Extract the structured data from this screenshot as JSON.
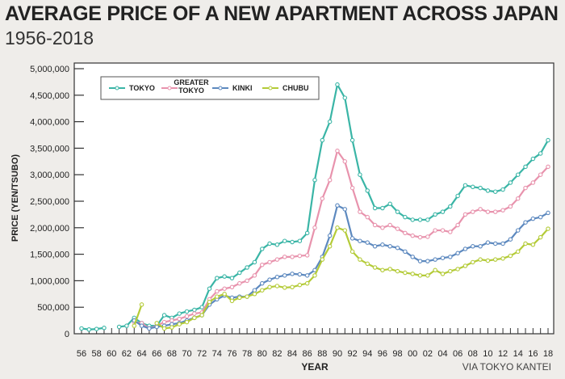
{
  "chart_data": {
    "type": "line",
    "title": "AVERAGE PRICE OF A NEW APARTMENT ACROSS JAPAN",
    "subtitle": "1956-2018",
    "xlabel": "YEAR",
    "ylabel": "PRICE (YEN/TSUBO)",
    "source": "VIA TOKYO KANTEI",
    "ylim": [
      0,
      5000000
    ],
    "xlim": [
      1956,
      2018
    ],
    "yticks": [
      0,
      500000,
      1000000,
      1500000,
      2000000,
      2500000,
      3000000,
      3500000,
      4000000,
      4500000,
      5000000
    ],
    "ytick_labels": [
      "0",
      "500,000",
      "1,000,000",
      "1,500,000",
      "2,000,000",
      "2,500,000",
      "3,000,000",
      "3,500,000",
      "4,000,000",
      "4,500,000",
      "5,000,000"
    ],
    "xtick_labels": [
      "56",
      "58",
      "60",
      "62",
      "64",
      "66",
      "68",
      "70",
      "72",
      "74",
      "76",
      "78",
      "80",
      "82",
      "84",
      "86",
      "88",
      "90",
      "92",
      "94",
      "96",
      "98",
      "00",
      "02",
      "04",
      "06",
      "08",
      "10",
      "12",
      "14",
      "16",
      "18"
    ],
    "legend_placement": "top-left",
    "start_year": 1956,
    "series": [
      {
        "name": "TOKYO",
        "color": "#3ab5a6",
        "values": [
          100000,
          80000,
          90000,
          110000,
          null,
          130000,
          150000,
          300000,
          200000,
          150000,
          150000,
          350000,
          300000,
          380000,
          420000,
          450000,
          500000,
          850000,
          1050000,
          1080000,
          1050000,
          1150000,
          1250000,
          1350000,
          1600000,
          1700000,
          1680000,
          1750000,
          1730000,
          1750000,
          1900000,
          2900000,
          3650000,
          4000000,
          4700000,
          4450000,
          3650000,
          3000000,
          2700000,
          2370000,
          2370000,
          2450000,
          2300000,
          2200000,
          2150000,
          2150000,
          2150000,
          2250000,
          2300000,
          2400000,
          2600000,
          2800000,
          2770000,
          2750000,
          2700000,
          2680000,
          2720000,
          2850000,
          3000000,
          3150000,
          3300000,
          3400000,
          3650000
        ]
      },
      {
        "name": "GREATER TOKYO",
        "color": "#e893ad",
        "values": [
          null,
          null,
          null,
          null,
          null,
          null,
          null,
          220000,
          200000,
          100000,
          150000,
          220000,
          250000,
          280000,
          330000,
          380000,
          400000,
          650000,
          800000,
          850000,
          880000,
          950000,
          1000000,
          1100000,
          1300000,
          1350000,
          1400000,
          1450000,
          1450000,
          1470000,
          1480000,
          2000000,
          2550000,
          2900000,
          3450000,
          3250000,
          2750000,
          2300000,
          2200000,
          2050000,
          2000000,
          2050000,
          1980000,
          1900000,
          1850000,
          1820000,
          1830000,
          1950000,
          1950000,
          1920000,
          2050000,
          2250000,
          2300000,
          2350000,
          2300000,
          2300000,
          2330000,
          2400000,
          2550000,
          2750000,
          2850000,
          3000000,
          3150000
        ]
      },
      {
        "name": "KINKI",
        "color": "#5d89bf",
        "values": [
          null,
          null,
          null,
          null,
          null,
          null,
          null,
          250000,
          150000,
          100000,
          130000,
          150000,
          180000,
          200000,
          250000,
          300000,
          350000,
          550000,
          650000,
          720000,
          680000,
          700000,
          700000,
          820000,
          950000,
          1020000,
          1070000,
          1100000,
          1130000,
          1120000,
          1100000,
          1200000,
          1450000,
          1850000,
          2420000,
          2350000,
          1800000,
          1750000,
          1720000,
          1650000,
          1680000,
          1650000,
          1620000,
          1550000,
          1450000,
          1370000,
          1370000,
          1400000,
          1430000,
          1450000,
          1520000,
          1600000,
          1650000,
          1650000,
          1720000,
          1700000,
          1700000,
          1780000,
          1950000,
          2100000,
          2170000,
          2200000,
          2280000
        ]
      },
      {
        "name": "CHUBU",
        "color": "#b4cb38",
        "values": [
          null,
          null,
          null,
          null,
          null,
          null,
          null,
          150000,
          550000,
          null,
          200000,
          100000,
          120000,
          180000,
          220000,
          300000,
          350000,
          600000,
          700000,
          750000,
          620000,
          680000,
          700000,
          750000,
          820000,
          880000,
          900000,
          870000,
          880000,
          920000,
          950000,
          1100000,
          1400000,
          1650000,
          2000000,
          1950000,
          1550000,
          1400000,
          1320000,
          1250000,
          1200000,
          1220000,
          1180000,
          1150000,
          1130000,
          1100000,
          1100000,
          1200000,
          1130000,
          1180000,
          1220000,
          1280000,
          1350000,
          1400000,
          1380000,
          1400000,
          1420000,
          1470000,
          1550000,
          1700000,
          1680000,
          1820000,
          1980000
        ]
      }
    ]
  }
}
